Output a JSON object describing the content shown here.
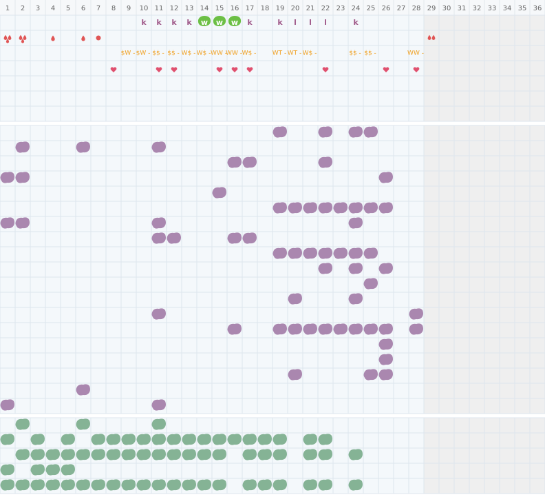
{
  "columns": [
    1,
    2,
    3,
    4,
    5,
    6,
    7,
    8,
    9,
    10,
    11,
    12,
    13,
    14,
    15,
    16,
    17,
    18,
    19,
    20,
    21,
    22,
    23,
    24,
    25,
    26,
    27,
    28,
    29,
    30,
    31,
    32,
    33,
    34,
    35,
    36
  ],
  "letters": [
    "k",
    "k",
    "k",
    "k",
    "w",
    "w",
    "w",
    "k",
    "k",
    "l",
    "l",
    "l",
    "k"
  ],
  "tags": [
    "$W -",
    "$W -",
    "$$ -",
    "$$ -",
    "W$ -",
    "W$ -",
    "WW -",
    "WW -",
    "W$ -",
    "WT -",
    "WT -",
    "W$ -",
    "$$ -",
    "$$ -",
    "WW -"
  ]
}
